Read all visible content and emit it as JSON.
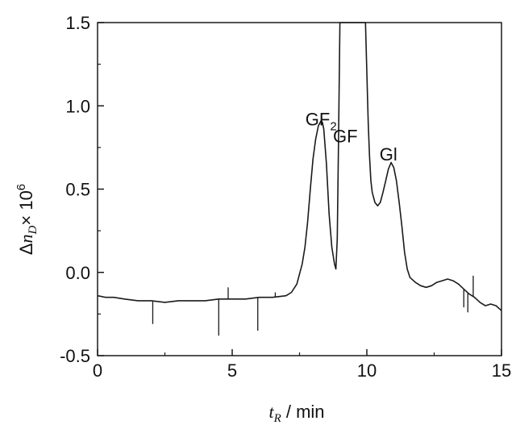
{
  "chart_data": {
    "type": "line",
    "title": "",
    "xlabel": {
      "symbol": "t",
      "subscript": "R",
      "rest": " / min"
    },
    "ylabel": {
      "delta": "Δ",
      "symbol": "n",
      "subscript": "D",
      "times": "× 10",
      "exponent": "6"
    },
    "xlim": [
      0,
      15
    ],
    "ylim": [
      -0.5,
      1.5
    ],
    "xticks": [
      0,
      5,
      10,
      15
    ],
    "xtick_labels": [
      "0",
      "5",
      "10",
      "15"
    ],
    "yticks": [
      -0.5,
      0.0,
      0.5,
      1.0,
      1.5
    ],
    "ytick_labels": [
      "-0.5",
      "0.0",
      "0.5",
      "1.0",
      "1.5"
    ],
    "grid": false,
    "legend": "none",
    "annotations": [
      {
        "text": "GF",
        "subscript": "2",
        "x": 8.3,
        "y": 0.93
      },
      {
        "text": "GF",
        "subscript": "",
        "x": 9.2,
        "y": 0.83
      },
      {
        "text": "Gl",
        "subscript": "",
        "x": 10.8,
        "y": 0.72
      }
    ],
    "series": [
      {
        "color": "#1a1a1a",
        "x": [
          0.0,
          0.3,
          0.6,
          1.0,
          1.5,
          2.0,
          2.5,
          3.0,
          3.5,
          4.0,
          4.5,
          5.0,
          5.5,
          6.0,
          6.5,
          7.0,
          7.2,
          7.4,
          7.6,
          7.7,
          7.8,
          7.9,
          8.0,
          8.1,
          8.2,
          8.3,
          8.35,
          8.4,
          8.5,
          8.6,
          8.7,
          8.8,
          8.85,
          8.9,
          8.95,
          9.0,
          9.5,
          9.95,
          10.0,
          10.05,
          10.1,
          10.15,
          10.2,
          10.3,
          10.4,
          10.5,
          10.6,
          10.7,
          10.8,
          10.9,
          11.0,
          11.1,
          11.2,
          11.3,
          11.4,
          11.5,
          11.6,
          11.8,
          12.0,
          12.2,
          12.4,
          12.6,
          12.8,
          13.0,
          13.2,
          13.4,
          13.6,
          13.8,
          14.0,
          14.2,
          14.4,
          14.6,
          14.8,
          15.0
        ],
        "y": [
          -0.14,
          -0.15,
          -0.15,
          -0.16,
          -0.17,
          -0.17,
          -0.18,
          -0.17,
          -0.17,
          -0.17,
          -0.16,
          -0.16,
          -0.16,
          -0.15,
          -0.15,
          -0.14,
          -0.12,
          -0.07,
          0.05,
          0.15,
          0.3,
          0.5,
          0.68,
          0.8,
          0.88,
          0.91,
          0.9,
          0.86,
          0.65,
          0.35,
          0.15,
          0.05,
          0.02,
          0.2,
          0.8,
          1.55,
          1.55,
          1.55,
          1.2,
          0.9,
          0.7,
          0.55,
          0.48,
          0.42,
          0.4,
          0.42,
          0.48,
          0.55,
          0.62,
          0.66,
          0.63,
          0.55,
          0.42,
          0.28,
          0.12,
          0.02,
          -0.03,
          -0.06,
          -0.08,
          -0.09,
          -0.08,
          -0.06,
          -0.05,
          -0.04,
          -0.05,
          -0.07,
          -0.1,
          -0.13,
          -0.15,
          -0.18,
          -0.2,
          -0.19,
          -0.2,
          -0.23
        ]
      }
    ],
    "spikes": [
      {
        "x": 2.05,
        "y": -0.31
      },
      {
        "x": 4.5,
        "y": -0.38
      },
      {
        "x": 4.85,
        "y": -0.09
      },
      {
        "x": 5.95,
        "y": -0.35
      },
      {
        "x": 6.6,
        "y": -0.12
      },
      {
        "x": 13.6,
        "y": -0.21
      },
      {
        "x": 13.75,
        "y": -0.24
      },
      {
        "x": 13.95,
        "y": -0.02
      }
    ]
  }
}
